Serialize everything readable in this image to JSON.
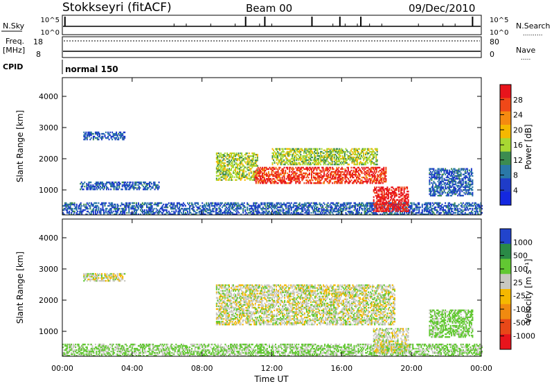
{
  "header": {
    "station": "Stokkseyri (fitACF)",
    "beam": "Beam 00",
    "date": "09/Dec/2010"
  },
  "panels": {
    "noise": {
      "left_label": "N.Sky",
      "left_ticks": [
        "10^5",
        "10^0"
      ],
      "right_ticks": [
        "10^5",
        "10^0"
      ],
      "right_label": "N.Search",
      "right_label_line": ".........."
    },
    "freq": {
      "left_label_line1": "Freq.",
      "left_label_line2": "[MHz]",
      "left_ticks": [
        "18",
        "8"
      ],
      "right_ticks": [
        "80",
        "0"
      ],
      "right_label": "Nave",
      "right_label_line": "....."
    },
    "cpid": {
      "label": "CPID",
      "program": "normal 150"
    }
  },
  "axes": {
    "y_label": "Slant Range [km]",
    "y_ticks": [
      "4000",
      "3000",
      "2000",
      "1000"
    ],
    "x_ticks": [
      "00:00",
      "04:00",
      "08:00",
      "12:00",
      "16:00",
      "20:00",
      "00:00"
    ],
    "x_label": "Time UT"
  },
  "colorbars": {
    "power": {
      "label": "Power [dB]",
      "ticks": [
        "28",
        "24",
        "20",
        "16",
        "12",
        "8",
        "4"
      ],
      "colors": [
        "#e8141c",
        "#f04818",
        "#f58a10",
        "#f5b800",
        "#a8d832",
        "#3c8c50",
        "#2a78a8",
        "#1f3cc8",
        "#1428e0"
      ]
    },
    "velocity": {
      "label": "Velocity [m s⁻¹]",
      "ticks": [
        "1000",
        "500",
        "100",
        "25",
        "-25",
        "-100",
        "-500",
        "-1000"
      ],
      "colors": [
        "#2244cc",
        "#2a8a46",
        "#62c832",
        "#c8c8c0",
        "#f5b800",
        "#f08a10",
        "#e84818",
        "#e8141c"
      ]
    }
  },
  "chart_data": [
    {
      "type": "heatmap",
      "title": "Power",
      "x": [
        "00:00",
        "04:00",
        "08:00",
        "12:00",
        "16:00",
        "20:00",
        "00:00"
      ],
      "xlabel": "Time UT",
      "ylabel": "Slant Range [km]",
      "ylim": [
        200,
        4600
      ],
      "colorbar": {
        "label": "Power [dB]",
        "range": [
          0,
          32
        ]
      },
      "regions": [
        {
          "t_start_h": 0.0,
          "t_end_h": 24.0,
          "range_start_km": 200,
          "range_end_km": 600,
          "power_db": 6
        },
        {
          "t_start_h": 1.2,
          "t_end_h": 3.6,
          "range_start_km": 2600,
          "range_end_km": 2850,
          "power_db": 6
        },
        {
          "t_start_h": 1.0,
          "t_end_h": 5.5,
          "range_start_km": 1000,
          "range_end_km": 1250,
          "power_db": 6
        },
        {
          "t_start_h": 8.8,
          "t_end_h": 11.2,
          "range_start_km": 1300,
          "range_end_km": 2200,
          "power_db": 14
        },
        {
          "t_start_h": 11.0,
          "t_end_h": 18.5,
          "range_start_km": 1200,
          "range_end_km": 1700,
          "power_db": 26
        },
        {
          "t_start_h": 12.0,
          "t_end_h": 18.0,
          "range_start_km": 1800,
          "range_end_km": 2300,
          "power_db": 14
        },
        {
          "t_start_h": 17.8,
          "t_end_h": 19.8,
          "range_start_km": 300,
          "range_end_km": 1100,
          "power_db": 28
        },
        {
          "t_start_h": 21.0,
          "t_end_h": 23.5,
          "range_start_km": 800,
          "range_end_km": 1700,
          "power_db": 6
        }
      ]
    },
    {
      "type": "heatmap",
      "title": "Velocity",
      "x": [
        "00:00",
        "04:00",
        "08:00",
        "12:00",
        "16:00",
        "20:00",
        "00:00"
      ],
      "xlabel": "Time UT",
      "ylabel": "Slant Range [km]",
      "ylim": [
        200,
        4600
      ],
      "colorbar": {
        "label": "Velocity [m s⁻¹]",
        "range": [
          -1000,
          1000
        ]
      },
      "regions": [
        {
          "t_start_h": 0.0,
          "t_end_h": 24.0,
          "range_start_km": 200,
          "range_end_km": 600,
          "velocity_ms": 60
        },
        {
          "t_start_h": 1.2,
          "t_end_h": 3.6,
          "range_start_km": 2600,
          "range_end_km": 2850,
          "velocity_ms": 0
        },
        {
          "t_start_h": 8.8,
          "t_end_h": 19.0,
          "range_start_km": 1200,
          "range_end_km": 2500,
          "velocity_ms": 0
        },
        {
          "t_start_h": 17.8,
          "t_end_h": 19.8,
          "range_start_km": 300,
          "range_end_km": 1100,
          "velocity_ms": 0
        },
        {
          "t_start_h": 21.0,
          "t_end_h": 23.5,
          "range_start_km": 800,
          "range_end_km": 1700,
          "velocity_ms": 80
        }
      ]
    }
  ]
}
